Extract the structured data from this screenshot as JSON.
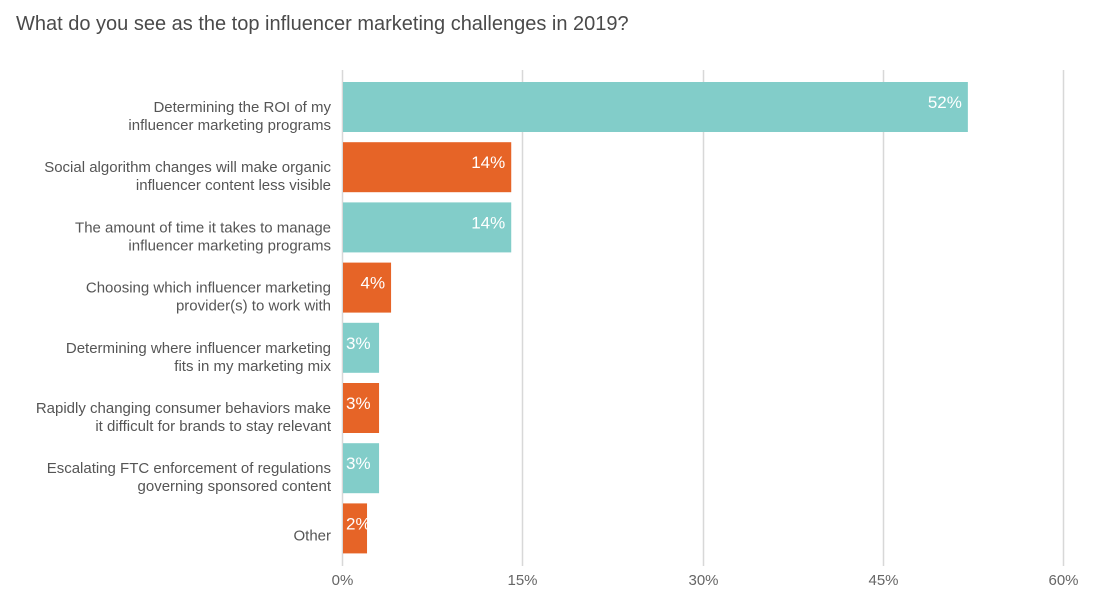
{
  "chart_data": {
    "type": "bar",
    "orientation": "horizontal",
    "title": "What do you see as the top influencer marketing challenges in 2019?",
    "xlabel": "",
    "ylabel": "",
    "xlim": [
      0,
      60
    ],
    "grid": true,
    "ticks": [
      "0%",
      "15%",
      "30%",
      "45%",
      "60%"
    ],
    "tick_values": [
      0,
      15,
      30,
      45,
      60
    ],
    "categories": [
      [
        "Determining the ROI of my",
        "influencer marketing programs"
      ],
      [
        "Social algorithm changes will make organic",
        "influencer content less visible"
      ],
      [
        "The amount of time it takes to manage",
        "influencer marketing programs"
      ],
      [
        "Choosing which influencer marketing",
        "provider(s) to work with"
      ],
      [
        "Determining where influencer marketing",
        "fits in my marketing mix"
      ],
      [
        "Rapidly changing consumer behaviors make",
        "it difficult for brands to stay relevant"
      ],
      [
        "Escalating FTC enforcement of regulations",
        "governing sponsored content"
      ],
      [
        "Other"
      ]
    ],
    "values": [
      52,
      14,
      14,
      4,
      3,
      3,
      3,
      2
    ],
    "value_labels": [
      "52%",
      "14%",
      "14%",
      "4%",
      "3%",
      "3%",
      "3%",
      "2%"
    ],
    "colors": [
      "#82cdc9",
      "#e66427",
      "#82cdc9",
      "#e66427",
      "#82cdc9",
      "#e66427",
      "#82cdc9",
      "#e66427"
    ],
    "gridline_color": "#d8d8d8"
  }
}
